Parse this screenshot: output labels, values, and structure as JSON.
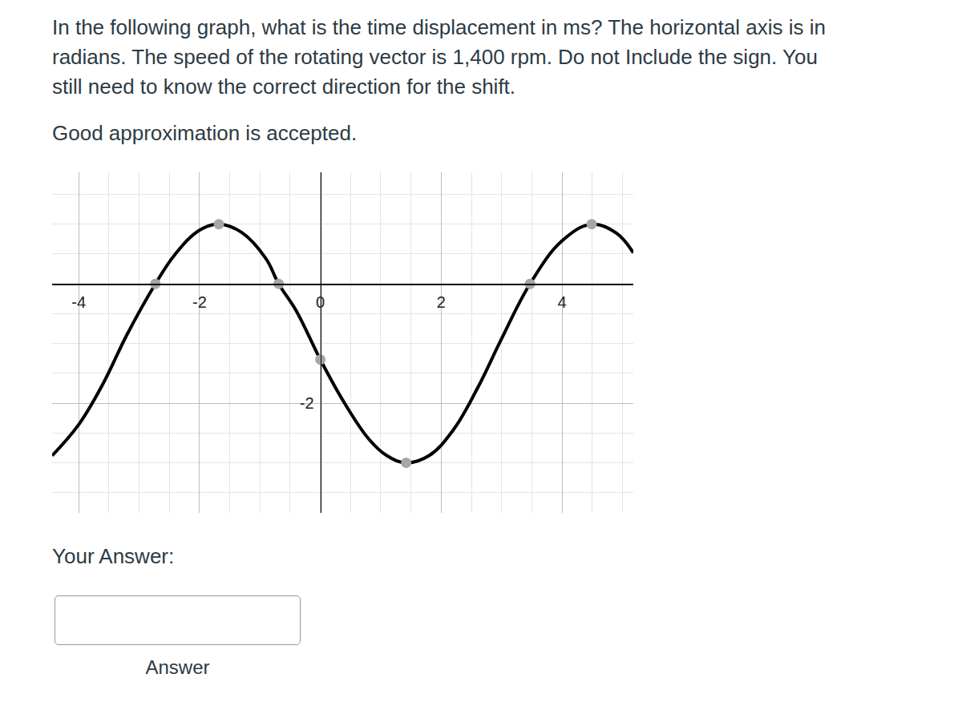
{
  "question": {
    "lines": [
      "In the following graph, what is the time displacement in ms? The horizontal axis is in",
      "radians. The speed of the rotating vector is 1,400 rpm. Do not Include the sign. You",
      "still need to know the correct direction for the shift."
    ],
    "note": "Good approximation is accepted."
  },
  "chart_data": {
    "type": "line",
    "xlim": [
      -4.44,
      5.18
    ],
    "ylim": [
      -3.84,
      1.87
    ],
    "xticks": [
      -4,
      -2,
      0,
      2,
      4
    ],
    "yticks": [
      -2
    ],
    "grid": true,
    "series": [
      {
        "type": "line",
        "color": "#000000",
        "line_style": "solid",
        "marker": "none",
        "x": [
          -4.44,
          -4.0,
          -3.6,
          -3.2,
          -2.73,
          -2.4,
          -2.0,
          -1.68,
          -1.3,
          -0.9,
          -0.69,
          -0.4,
          0,
          0.4,
          0.8,
          1.1,
          1.42,
          1.8,
          2.2,
          2.6,
          3.0,
          3.47,
          4.0,
          4.49,
          4.9,
          5.18
        ],
        "values": [
          -2.88,
          -2.36,
          -1.68,
          -0.85,
          0,
          0.5,
          0.9,
          1.0,
          0.86,
          0.42,
          0,
          -0.45,
          -1.27,
          -2.0,
          -2.6,
          -2.88,
          -3.0,
          -2.88,
          -2.45,
          -1.75,
          -0.92,
          0,
          0.72,
          1.0,
          0.85,
          0.52
        ]
      },
      {
        "type": "scatter",
        "color": "#a6a6a6",
        "marker": "circle",
        "x": [
          -2.73,
          -1.68,
          -0.69,
          0,
          1.42,
          3.47,
          4.49
        ],
        "values": [
          0,
          1.0,
          0,
          -1.27,
          -3.0,
          0,
          1.0
        ]
      }
    ]
  },
  "answer": {
    "prompt": "Your Answer:",
    "button": "Answer"
  }
}
